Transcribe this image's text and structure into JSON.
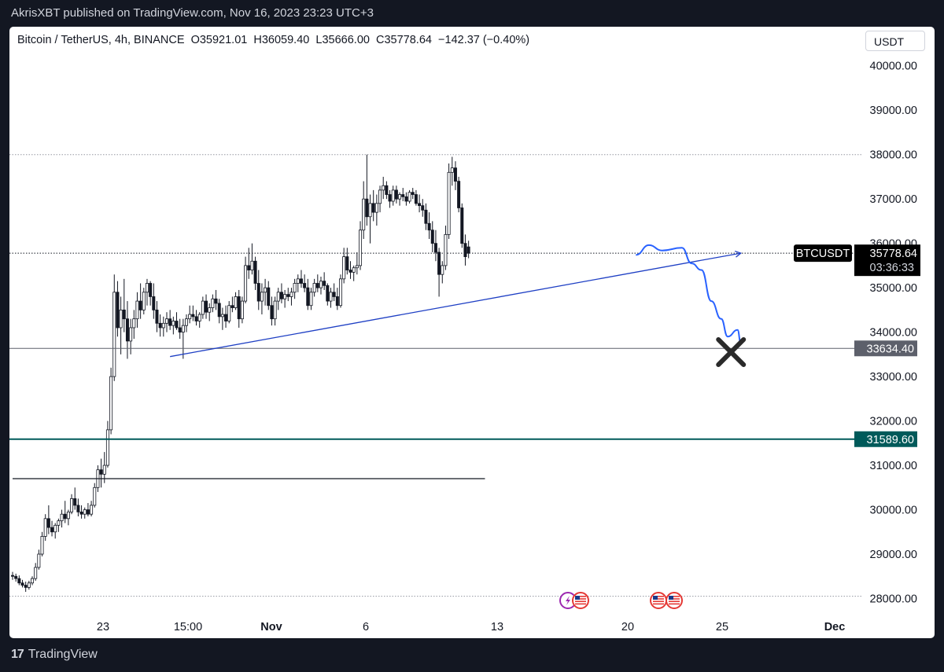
{
  "header": {
    "published_line": "AkrisXBT published on TradingView.com, Nov 16, 2023 23:23 UTC+3"
  },
  "legend": {
    "symbol": "Bitcoin / TetherUS, 4h, BINANCE",
    "open": "O35921.01",
    "high": "H36059.40",
    "low": "L35666.00",
    "close": "C35778.64",
    "change": "−142.37 (−0.40%)"
  },
  "currency_selector": "USDT",
  "footer": {
    "brand": "TradingView"
  },
  "colors": {
    "candle": "#131722",
    "trendline": "#1e3fc4",
    "projection": "#2962ff",
    "support_teal": "#005a5a",
    "label_gray": "#5d606b",
    "label_black": "#000000"
  },
  "chart_data": {
    "type": "candlestick",
    "symbol": "BTCUSDT",
    "interval": "4h",
    "ylim": [
      27900,
      40500
    ],
    "price_ticks": [
      "40000.00",
      "39000.00",
      "38000.00",
      "37000.00",
      "36000.00",
      "35000.00",
      "34000.00",
      "33000.00",
      "32000.00",
      "31000.00",
      "30000.00",
      "29000.00",
      "28000.00"
    ],
    "time_ticks": [
      "23",
      "15:00",
      "Nov",
      "6",
      "13",
      "20",
      "25",
      "Dec"
    ],
    "last_price": {
      "symbol_label": "BTCUSDT",
      "value": "35778.64",
      "countdown": "03:36:33"
    },
    "levels": [
      {
        "label": "33634.40",
        "value": 33634.4,
        "style": "gray"
      },
      {
        "label": "31589.60",
        "value": 31589.6,
        "style": "teal"
      }
    ],
    "dotted_levels": [
      38000,
      28050
    ],
    "horizontal_segment": {
      "value": 30700,
      "from": "2023-10-16",
      "to": "2023-11-09"
    },
    "trendline": {
      "from": [
        "2023-10-24",
        33450
      ],
      "to": [
        "2023-11-22",
        35780
      ]
    },
    "projection": [
      [
        "2023-11-16T16:00",
        35740
      ],
      [
        "2023-11-17T08:00",
        35960
      ],
      [
        "2023-11-18",
        35840
      ],
      [
        "2023-11-19",
        35900
      ],
      [
        "2023-11-19T12:00",
        35550
      ],
      [
        "2023-11-20",
        35400
      ],
      [
        "2023-11-20T12:00",
        34700
      ],
      [
        "2023-11-21",
        34300
      ],
      [
        "2023-11-21T08:00",
        33900
      ],
      [
        "2023-11-21T20:00",
        34050
      ],
      [
        "2023-11-22",
        33750
      ]
    ],
    "x_marker": {
      "at": [
        "2023-11-21T12:00",
        33550
      ]
    },
    "events_icons": [
      "lightning-icon",
      "us-flag-icon",
      "us-flag-icon",
      "us-flag-icon"
    ],
    "candles_ohlc": [
      [
        28520,
        28600,
        28420,
        28500
      ],
      [
        28500,
        28560,
        28380,
        28450
      ],
      [
        28450,
        28520,
        28300,
        28350
      ],
      [
        28350,
        28420,
        28250,
        28300
      ],
      [
        28300,
        28380,
        28150,
        28250
      ],
      [
        28250,
        28400,
        28200,
        28350
      ],
      [
        28350,
        28500,
        28300,
        28450
      ],
      [
        28450,
        28800,
        28400,
        28700
      ],
      [
        28700,
        29100,
        28650,
        29000
      ],
      [
        29000,
        29500,
        28950,
        29400
      ],
      [
        29400,
        29900,
        29300,
        29800
      ],
      [
        29800,
        30100,
        29450,
        29600
      ],
      [
        29600,
        29750,
        29400,
        29500
      ],
      [
        29500,
        29700,
        29350,
        29650
      ],
      [
        29650,
        29800,
        29500,
        29750
      ],
      [
        29750,
        30000,
        29600,
        29900
      ],
      [
        29900,
        30200,
        29700,
        29800
      ],
      [
        29800,
        30000,
        29650,
        29950
      ],
      [
        29950,
        30350,
        29900,
        30250
      ],
      [
        30250,
        30500,
        30000,
        30100
      ],
      [
        30100,
        30250,
        29850,
        29950
      ],
      [
        29950,
        30100,
        29800,
        29900
      ],
      [
        29900,
        30050,
        29800,
        30000
      ],
      [
        30000,
        30150,
        29850,
        29900
      ],
      [
        29900,
        30200,
        29850,
        30100
      ],
      [
        30100,
        30600,
        30050,
        30500
      ],
      [
        30500,
        31000,
        30400,
        30900
      ],
      [
        30900,
        31150,
        30500,
        30800
      ],
      [
        30800,
        31300,
        30600,
        31000
      ],
      [
        31000,
        32000,
        30950,
        31800
      ],
      [
        31800,
        33200,
        31700,
        33000
      ],
      [
        33000,
        35300,
        32900,
        34900
      ],
      [
        34900,
        35150,
        33900,
        34100
      ],
      [
        34100,
        34800,
        33500,
        34500
      ],
      [
        34500,
        35200,
        34000,
        34300
      ],
      [
        34300,
        34700,
        33400,
        33800
      ],
      [
        33800,
        34300,
        33500,
        34100
      ],
      [
        34100,
        34500,
        33850,
        34300
      ],
      [
        34300,
        34900,
        34100,
        34700
      ],
      [
        34700,
        35100,
        34300,
        34500
      ],
      [
        34500,
        35000,
        34400,
        34900
      ],
      [
        34900,
        35200,
        34600,
        35100
      ],
      [
        35100,
        35150,
        34600,
        34800
      ],
      [
        34800,
        35100,
        34300,
        34500
      ],
      [
        34500,
        34700,
        34000,
        34200
      ],
      [
        34200,
        34400,
        33900,
        34100
      ],
      [
        34100,
        34350,
        33900,
        34200
      ],
      [
        34200,
        34450,
        34000,
        34300
      ],
      [
        34300,
        34500,
        34050,
        34150
      ],
      [
        34150,
        34350,
        33950,
        34250
      ],
      [
        34250,
        34450,
        34050,
        34100
      ],
      [
        34100,
        34300,
        33850,
        34000
      ],
      [
        34000,
        34300,
        33400,
        34150
      ],
      [
        34150,
        34400,
        34000,
        34300
      ],
      [
        34300,
        34600,
        34200,
        34400
      ],
      [
        34400,
        34600,
        34250,
        34350
      ],
      [
        34350,
        34500,
        34150,
        34250
      ],
      [
        34250,
        34450,
        34100,
        34400
      ],
      [
        34400,
        34800,
        34300,
        34700
      ],
      [
        34700,
        34850,
        34300,
        34450
      ],
      [
        34450,
        34650,
        34250,
        34550
      ],
      [
        34550,
        34850,
        34450,
        34750
      ],
      [
        34750,
        34950,
        34500,
        34650
      ],
      [
        34650,
        34750,
        34200,
        34350
      ],
      [
        34350,
        34550,
        34050,
        34400
      ],
      [
        34400,
        34600,
        34100,
        34250
      ],
      [
        34250,
        34700,
        34200,
        34600
      ],
      [
        34600,
        34800,
        34450,
        34550
      ],
      [
        34550,
        34900,
        34500,
        34800
      ],
      [
        34800,
        34950,
        34100,
        34300
      ],
      [
        34300,
        34800,
        34200,
        34700
      ],
      [
        34700,
        35700,
        34650,
        35500
      ],
      [
        35500,
        35900,
        35200,
        35400
      ],
      [
        35400,
        36000,
        35300,
        35600
      ],
      [
        35600,
        35700,
        34950,
        35100
      ],
      [
        35100,
        35400,
        34500,
        34700
      ],
      [
        34700,
        35100,
        34400,
        34900
      ],
      [
        34900,
        35200,
        34600,
        35000
      ],
      [
        35000,
        35150,
        34500,
        34600
      ],
      [
        34600,
        34800,
        34150,
        34300
      ],
      [
        34300,
        34800,
        34150,
        34700
      ],
      [
        34700,
        35000,
        34500,
        34900
      ],
      [
        34900,
        35100,
        34650,
        34750
      ],
      [
        34750,
        34950,
        34550,
        34850
      ],
      [
        34850,
        35000,
        34700,
        34800
      ],
      [
        34800,
        35000,
        34600,
        34900
      ],
      [
        34900,
        35200,
        34750,
        35100
      ],
      [
        35100,
        35300,
        34900,
        35200
      ],
      [
        35200,
        35400,
        35000,
        35100
      ],
      [
        35100,
        35300,
        34900,
        35000
      ],
      [
        35000,
        35200,
        34500,
        34600
      ],
      [
        34600,
        35000,
        34500,
        34900
      ],
      [
        34900,
        35200,
        34800,
        35100
      ],
      [
        35100,
        35300,
        34900,
        35000
      ],
      [
        35000,
        35250,
        34850,
        35150
      ],
      [
        35150,
        35350,
        34950,
        35050
      ],
      [
        35050,
        35100,
        34600,
        34700
      ],
      [
        34700,
        35000,
        34550,
        34900
      ],
      [
        34900,
        35100,
        34700,
        34800
      ],
      [
        34800,
        35000,
        34500,
        34600
      ],
      [
        34600,
        35300,
        34550,
        35200
      ],
      [
        35200,
        35900,
        35100,
        35700
      ],
      [
        35700,
        35900,
        35300,
        35400
      ],
      [
        35400,
        35600,
        35200,
        35350
      ],
      [
        35350,
        35500,
        35150,
        35450
      ],
      [
        35450,
        35800,
        35300,
        35500
      ],
      [
        35500,
        36500,
        35400,
        36300
      ],
      [
        36300,
        37400,
        36100,
        37000
      ],
      [
        37000,
        38000,
        36400,
        36600
      ],
      [
        36600,
        37100,
        36000,
        36900
      ],
      [
        36900,
        37200,
        36500,
        36700
      ],
      [
        36700,
        37100,
        36400,
        36900
      ],
      [
        36900,
        37300,
        36700,
        37200
      ],
      [
        37200,
        37500,
        37000,
        37300
      ],
      [
        37300,
        37400,
        37000,
        37100
      ],
      [
        37100,
        37200,
        36800,
        36950
      ],
      [
        36950,
        37300,
        36850,
        37200
      ],
      [
        37200,
        37300,
        36900,
        37000
      ],
      [
        37000,
        37150,
        36850,
        37100
      ],
      [
        37100,
        37250,
        36950,
        37050
      ],
      [
        37050,
        37150,
        36850,
        36950
      ],
      [
        36950,
        37200,
        36900,
        37150
      ],
      [
        37150,
        37250,
        37000,
        37100
      ],
      [
        37100,
        37200,
        36850,
        36900
      ],
      [
        36900,
        37100,
        36700,
        36850
      ],
      [
        36850,
        37000,
        36600,
        36750
      ],
      [
        36750,
        36900,
        36300,
        36450
      ],
      [
        36450,
        36700,
        36100,
        36300
      ],
      [
        36300,
        36500,
        35800,
        36000
      ],
      [
        36000,
        36300,
        35600,
        35800
      ],
      [
        35800,
        35900,
        34800,
        35300
      ],
      [
        35300,
        35600,
        35100,
        35500
      ],
      [
        35500,
        36400,
        35400,
        36200
      ],
      [
        36200,
        37800,
        36100,
        37600
      ],
      [
        37600,
        37950,
        37300,
        37700
      ],
      [
        37700,
        37850,
        37200,
        37400
      ],
      [
        37400,
        37500,
        36700,
        36800
      ],
      [
        36800,
        36900,
        35900,
        36000
      ],
      [
        36000,
        36200,
        35500,
        35700
      ],
      [
        35921.01,
        36059.4,
        35666,
        35778.64
      ]
    ]
  }
}
